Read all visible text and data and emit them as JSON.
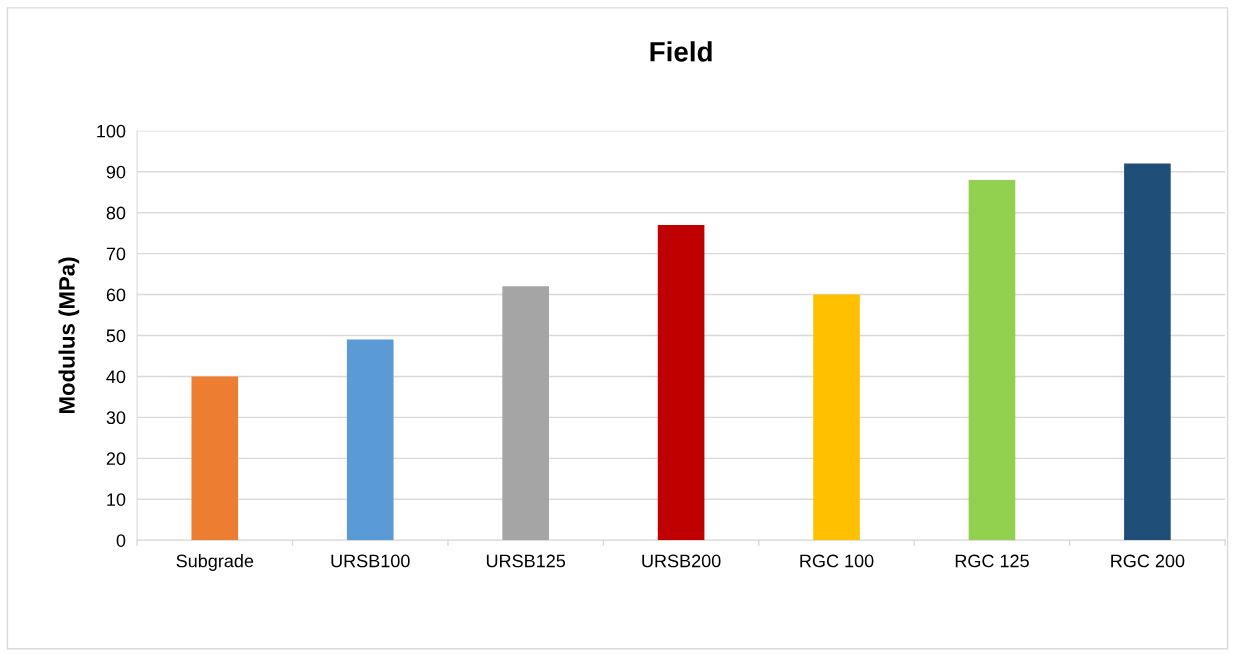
{
  "chart_data": {
    "type": "bar",
    "title": "Field",
    "ylabel": "Modulus (MPa)",
    "categories": [
      "Subgrade",
      "URSB100",
      "URSB125",
      "URSB200",
      "RGC 100",
      "RGC 125",
      "RGC 200"
    ],
    "values": [
      40,
      49,
      62,
      77,
      60,
      88,
      92
    ],
    "colors": [
      "#ed7d31",
      "#5b9bd5",
      "#a5a5a5",
      "#c00000",
      "#ffc000",
      "#92d050",
      "#1f4e79"
    ],
    "ylim": [
      0,
      100
    ],
    "yticks": [
      0,
      10,
      20,
      30,
      40,
      50,
      60,
      70,
      80,
      90,
      100
    ],
    "grid": "y",
    "legend": false
  }
}
